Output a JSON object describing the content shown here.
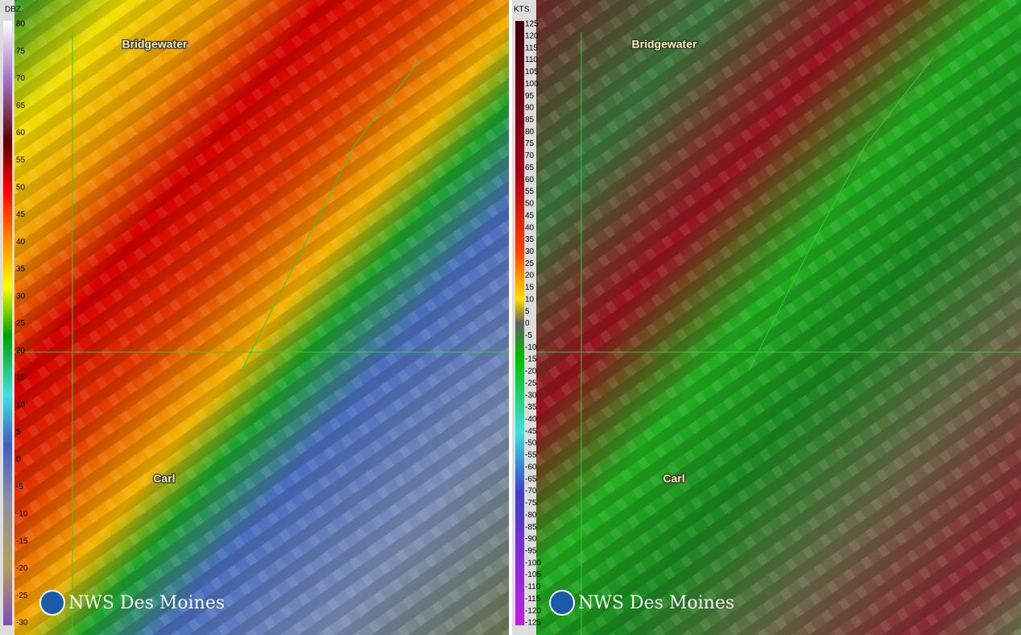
{
  "left_panel": {
    "scale_unit": "DBZ",
    "scale_labels": [
      80,
      75,
      70,
      65,
      60,
      55,
      50,
      45,
      40,
      35,
      30,
      25,
      20,
      15,
      10,
      5,
      0,
      -5,
      -10,
      -15,
      -20,
      -25,
      -30
    ],
    "places": [
      "Bridgewater",
      "Carl"
    ],
    "watermark": "NWS Des Moines"
  },
  "right_panel": {
    "scale_unit": "KTS",
    "scale_labels": [
      125,
      120,
      115,
      110,
      105,
      100,
      95,
      90,
      85,
      80,
      75,
      70,
      65,
      60,
      55,
      50,
      45,
      40,
      35,
      30,
      25,
      20,
      15,
      10,
      5,
      0,
      -5,
      -10,
      -15,
      -20,
      -25,
      -30,
      -35,
      -40,
      -45,
      -50,
      -55,
      -60,
      -65,
      -70,
      -75,
      -80,
      -85,
      -90,
      -95,
      -100,
      -105,
      -110,
      -115,
      -120,
      -125
    ],
    "places": [
      "Bridgewater",
      "Carl"
    ],
    "watermark": "NWS Des Moines"
  }
}
